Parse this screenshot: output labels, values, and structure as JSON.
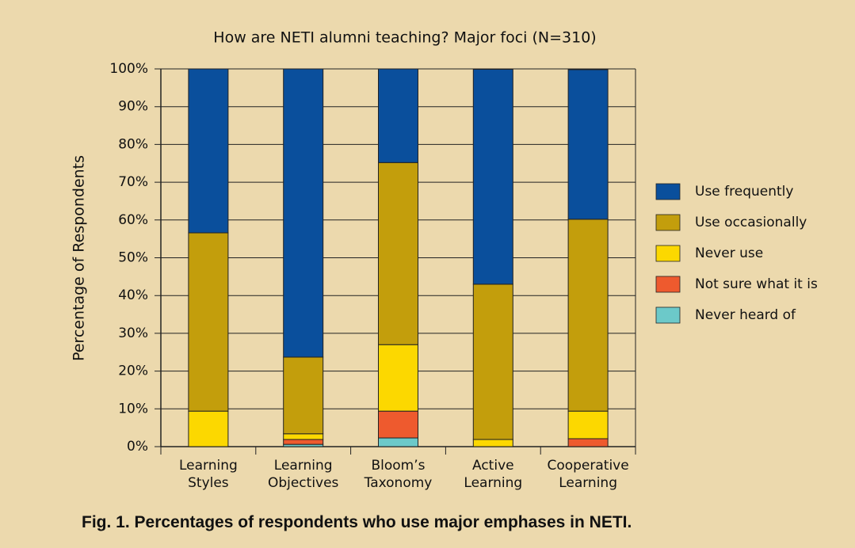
{
  "chart_data": {
    "type": "stacked_bar",
    "title": "How are NETI alumni teaching? Major foci (N=310)",
    "y_label": "Percentage of Respondents",
    "caption": "Fig. 1. Percentages of respondents who use major emphases in NETI.",
    "categories": [
      "Learning Styles",
      "Learning Objectives",
      "Bloom’s Taxonomy",
      "Active Learning",
      "Cooperative Learning"
    ],
    "series": [
      {
        "name": "Use frequently",
        "color": "#0a4f9c",
        "values": [
          43.4,
          76.3,
          24.8,
          56.9,
          39.6
        ]
      },
      {
        "name": "Use occasionally",
        "color": "#c39e0c",
        "values": [
          47.2,
          20.3,
          48.2,
          41.1,
          50.8
        ]
      },
      {
        "name": "Never use",
        "color": "#fcd800",
        "values": [
          9.4,
          1.5,
          17.6,
          1.9,
          7.3
        ]
      },
      {
        "name": "Not sure what it is",
        "color": "#ee5a2e",
        "values": [
          0,
          1.3,
          7.1,
          0,
          2.1
        ]
      },
      {
        "name": "Never heard of",
        "color": "#6cc9c9",
        "values": [
          0,
          0.6,
          2.3,
          0,
          0
        ]
      }
    ],
    "ylim": [
      0,
      100
    ],
    "yticks": [
      {
        "value": 0,
        "label": "0%"
      },
      {
        "value": 10,
        "label": "10%"
      },
      {
        "value": 20,
        "label": "20%"
      },
      {
        "value": 30,
        "label": "30%"
      },
      {
        "value": 40,
        "label": "40%"
      },
      {
        "value": 50,
        "label": "50%"
      },
      {
        "value": 60,
        "label": "60%"
      },
      {
        "value": 70,
        "label": "70%"
      },
      {
        "value": 80,
        "label": "80%"
      },
      {
        "value": 90,
        "label": "90%"
      },
      {
        "value": 100,
        "label": "100%"
      }
    ],
    "grid": true,
    "legend": "right"
  }
}
